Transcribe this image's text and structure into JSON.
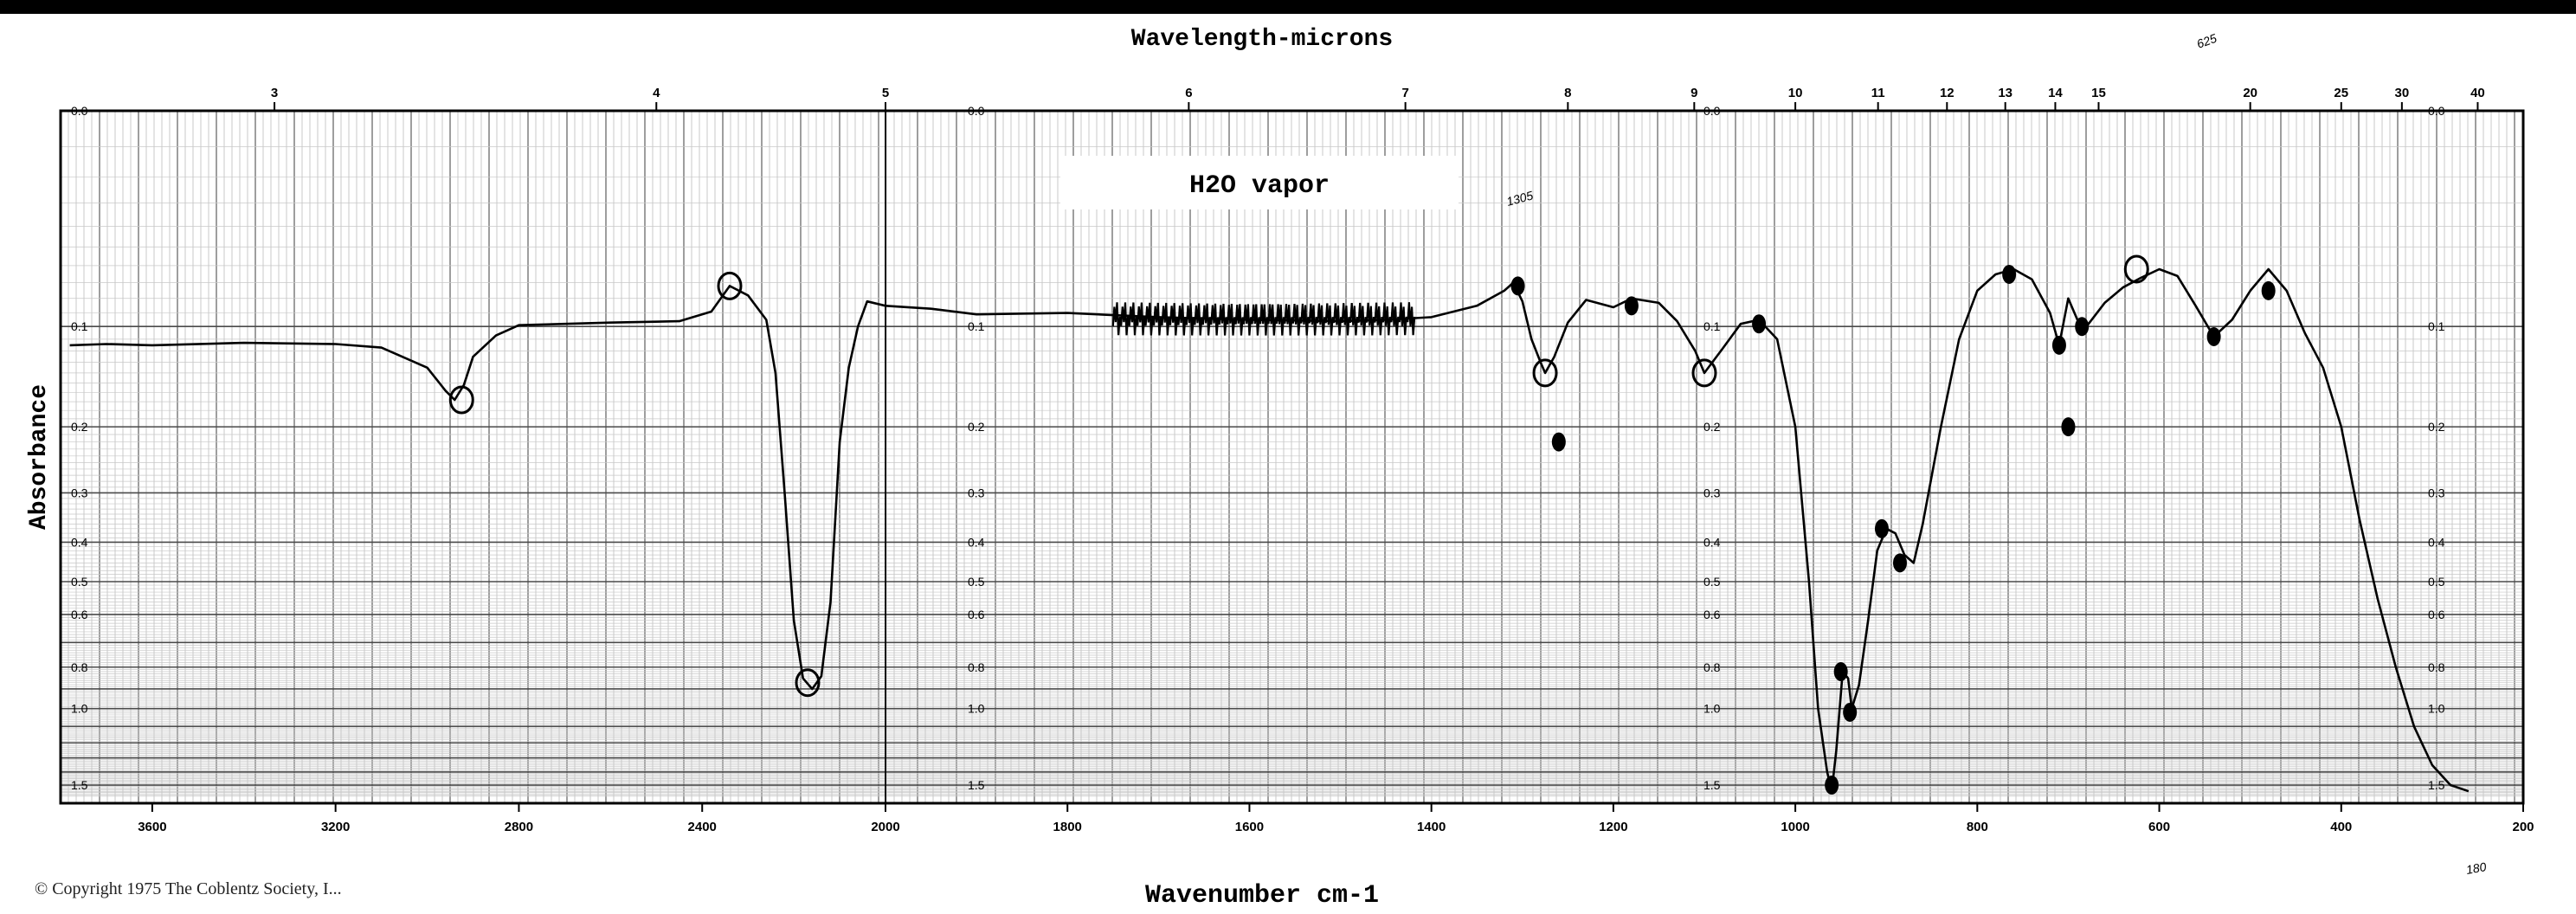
{
  "chart_data": {
    "type": "line",
    "title": "Wavelength-microns",
    "xlabel": "Wavenumber cm-1",
    "ylabel": "Absorbance",
    "annotation": "H2O vapor",
    "handwritten": [
      "625",
      "1305",
      "180"
    ],
    "copyright": "© Copyright 1975 The Coblentz Society, I...",
    "x_axis": {
      "ticks": [
        3600,
        3200,
        2800,
        2400,
        2000,
        1800,
        1600,
        1400,
        1200,
        1000,
        800,
        600,
        400,
        200
      ],
      "breakpoint": 2000,
      "xlim": [
        3800,
        200
      ]
    },
    "top_axis": {
      "ticks": [
        "3",
        "4",
        "5",
        "6",
        "7",
        "8",
        "9",
        "10",
        "11",
        "12",
        "13",
        "14",
        "15",
        "20",
        "25",
        "30",
        "40"
      ]
    },
    "y_axis": {
      "ticks": [
        "0.0",
        "0.1",
        "0.2",
        "0.3",
        "0.4",
        "0.5",
        "0.6",
        "0.8",
        "1.0",
        "1.5"
      ],
      "ylim": [
        0.0,
        1.5
      ]
    },
    "series": [
      {
        "x": [
          3780,
          3700,
          3600,
          3400,
          3200,
          3100,
          3000,
          2960,
          2940,
          2920,
          2900,
          2850,
          2800,
          2600,
          2450,
          2380,
          2340,
          2300,
          2260,
          2240,
          2220,
          2200,
          2180,
          2160,
          2140,
          2120,
          2100,
          2080,
          2060,
          2040,
          2000,
          1950,
          1900,
          1800,
          1700,
          1600,
          1500,
          1450,
          1400,
          1350,
          1320,
          1310,
          1300,
          1290,
          1280,
          1275,
          1265,
          1250,
          1230,
          1200,
          1180,
          1170,
          1150,
          1130,
          1110,
          1100,
          1080,
          1060,
          1040,
          1020,
          1000,
          985,
          975,
          965,
          960,
          955,
          948,
          942,
          938,
          930,
          920,
          910,
          900,
          890,
          880,
          870,
          860,
          840,
          820,
          800,
          780,
          760,
          740,
          720,
          710,
          700,
          690,
          680,
          660,
          640,
          620,
          600,
          580,
          560,
          540,
          520,
          500,
          480,
          460,
          440,
          420,
          400,
          380,
          360,
          340,
          320,
          300,
          280,
          260
        ],
        "y": [
          0.115,
          0.114,
          0.115,
          0.113,
          0.114,
          0.117,
          0.135,
          0.158,
          0.168,
          0.152,
          0.125,
          0.107,
          0.099,
          0.097,
          0.096,
          0.089,
          0.072,
          0.078,
          0.095,
          0.14,
          0.3,
          0.62,
          0.85,
          0.9,
          0.84,
          0.56,
          0.22,
          0.135,
          0.1,
          0.082,
          0.085,
          0.087,
          0.091,
          0.09,
          0.093,
          0.095,
          0.096,
          0.095,
          0.093,
          0.085,
          0.075,
          0.07,
          0.082,
          0.11,
          0.13,
          0.14,
          0.125,
          0.097,
          0.081,
          0.086,
          0.08,
          0.081,
          0.083,
          0.096,
          0.12,
          0.14,
          0.118,
          0.098,
          0.095,
          0.11,
          0.2,
          0.5,
          1.0,
          1.4,
          1.55,
          1.25,
          0.82,
          0.85,
          1.0,
          0.88,
          0.62,
          0.42,
          0.37,
          0.38,
          0.43,
          0.45,
          0.36,
          0.2,
          0.11,
          0.075,
          0.065,
          0.062,
          0.068,
          0.09,
          0.115,
          0.08,
          0.095,
          0.1,
          0.083,
          0.073,
          0.067,
          0.062,
          0.066,
          0.085,
          0.108,
          0.095,
          0.075,
          0.062,
          0.075,
          0.105,
          0.135,
          0.2,
          0.35,
          0.55,
          0.8,
          1.1,
          1.35,
          1.5,
          1.55
        ]
      }
    ]
  }
}
